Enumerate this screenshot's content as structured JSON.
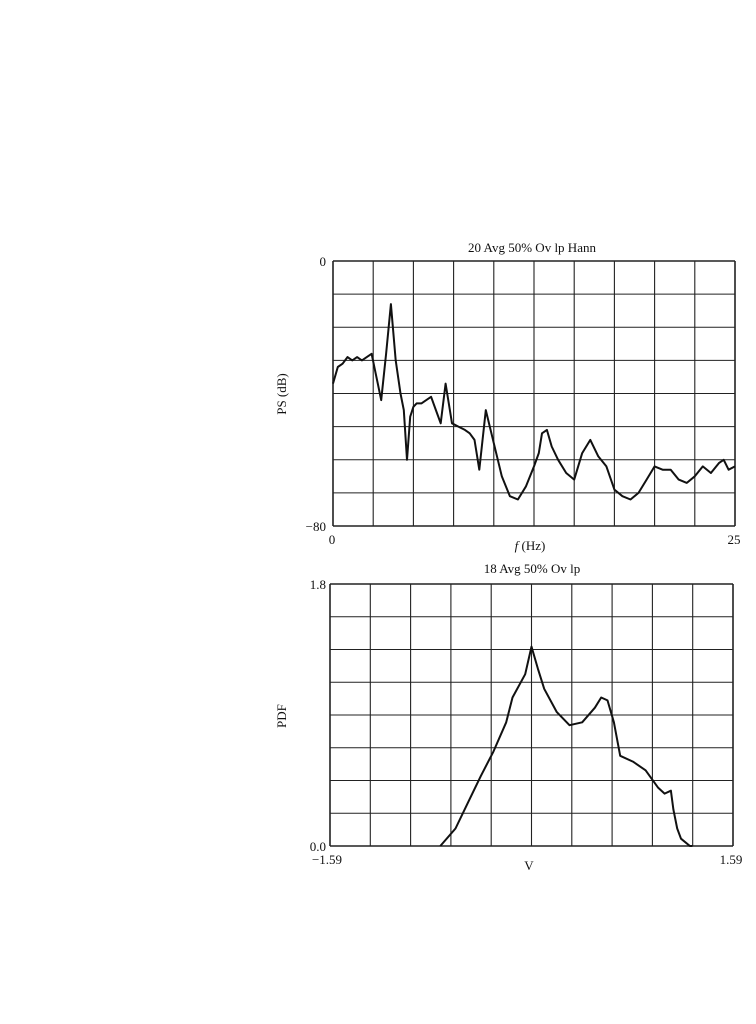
{
  "chart_data": [
    {
      "type": "line",
      "title": "20 Avg 50% Ov lp Hann",
      "xlabel_italic": "f",
      "xlabel_rest": " (Hz)",
      "ylabel": "PS (dB)",
      "xlim": [
        0,
        25
      ],
      "ylim": [
        -80,
        0
      ],
      "x_tick_labels": {
        "min": "0",
        "max": "25"
      },
      "y_tick_labels": {
        "min": "−80",
        "max": "0"
      },
      "grid": true,
      "grid_divisions": {
        "x": 10,
        "y": 8
      },
      "series": [
        {
          "x": [
            0,
            0.3,
            0.6,
            0.9,
            1.2,
            1.5,
            1.8,
            2.1,
            2.4,
            2.7,
            3.0,
            3.3,
            3.6,
            3.9,
            4.2,
            4.4,
            4.6,
            4.8,
            5.0,
            5.2,
            5.5,
            5.8,
            6.1,
            6.4,
            6.7,
            7.0,
            7.4,
            7.8,
            8.2,
            8.5,
            8.8,
            9.1,
            9.5,
            10.0,
            10.5,
            11.0,
            11.5,
            12.0,
            12.5,
            12.8,
            13.0,
            13.3,
            13.6,
            14.0,
            14.5,
            15.0,
            15.5,
            16.0,
            16.5,
            17.0,
            17.5,
            18.0,
            18.5,
            19.0,
            19.5,
            20.0,
            20.5,
            21.0,
            21.5,
            22.0,
            22.5,
            23.0,
            23.5,
            24.0,
            24.3,
            24.6,
            25.0
          ],
          "y": [
            -37,
            -32,
            -31,
            -29,
            -30,
            -29,
            -30,
            -29,
            -28,
            -35,
            -42,
            -28,
            -13,
            -30,
            -40,
            -45,
            -60,
            -47,
            -44,
            -43,
            -43,
            -42,
            -41,
            -45,
            -49,
            -37,
            -49,
            -50,
            -51,
            -52,
            -54,
            -63,
            -45,
            -55,
            -65,
            -71,
            -72,
            -68,
            -62,
            -58,
            -52,
            -51,
            -56,
            -60,
            -64,
            -66,
            -58,
            -54,
            -59,
            -62,
            -69,
            -71,
            -72,
            -70,
            -66,
            -62,
            -63,
            -63,
            -66,
            -67,
            -65,
            -62,
            -64,
            -61,
            -60,
            -63,
            -62
          ]
        }
      ]
    },
    {
      "type": "line",
      "title": "18 Avg 50% Ov lp",
      "xlabel": "V",
      "ylabel": "PDF",
      "xlim": [
        -1.59,
        1.59
      ],
      "ylim": [
        0,
        1.8
      ],
      "x_tick_labels": {
        "min": "−1.59",
        "max": "1.59"
      },
      "y_tick_labels": {
        "min": "0.0",
        "max": "1.8"
      },
      "grid": true,
      "grid_divisions": {
        "x": 10,
        "y": 8
      },
      "series": [
        {
          "x": [
            -0.72,
            -0.6,
            -0.5,
            -0.4,
            -0.3,
            -0.2,
            -0.15,
            -0.05,
            0.0,
            0.05,
            0.1,
            0.2,
            0.3,
            0.4,
            0.5,
            0.55,
            0.6,
            0.65,
            0.7,
            0.8,
            0.9,
            1.0,
            1.05,
            1.1,
            1.12,
            1.15,
            1.18,
            1.25,
            1.27
          ],
          "y": [
            0.0,
            0.12,
            0.3,
            0.48,
            0.65,
            0.85,
            1.02,
            1.18,
            1.37,
            1.22,
            1.08,
            0.92,
            0.83,
            0.85,
            0.95,
            1.02,
            1.0,
            0.85,
            0.62,
            0.58,
            0.52,
            0.4,
            0.36,
            0.38,
            0.25,
            0.12,
            0.05,
            0.0,
            0.0
          ]
        }
      ]
    }
  ]
}
